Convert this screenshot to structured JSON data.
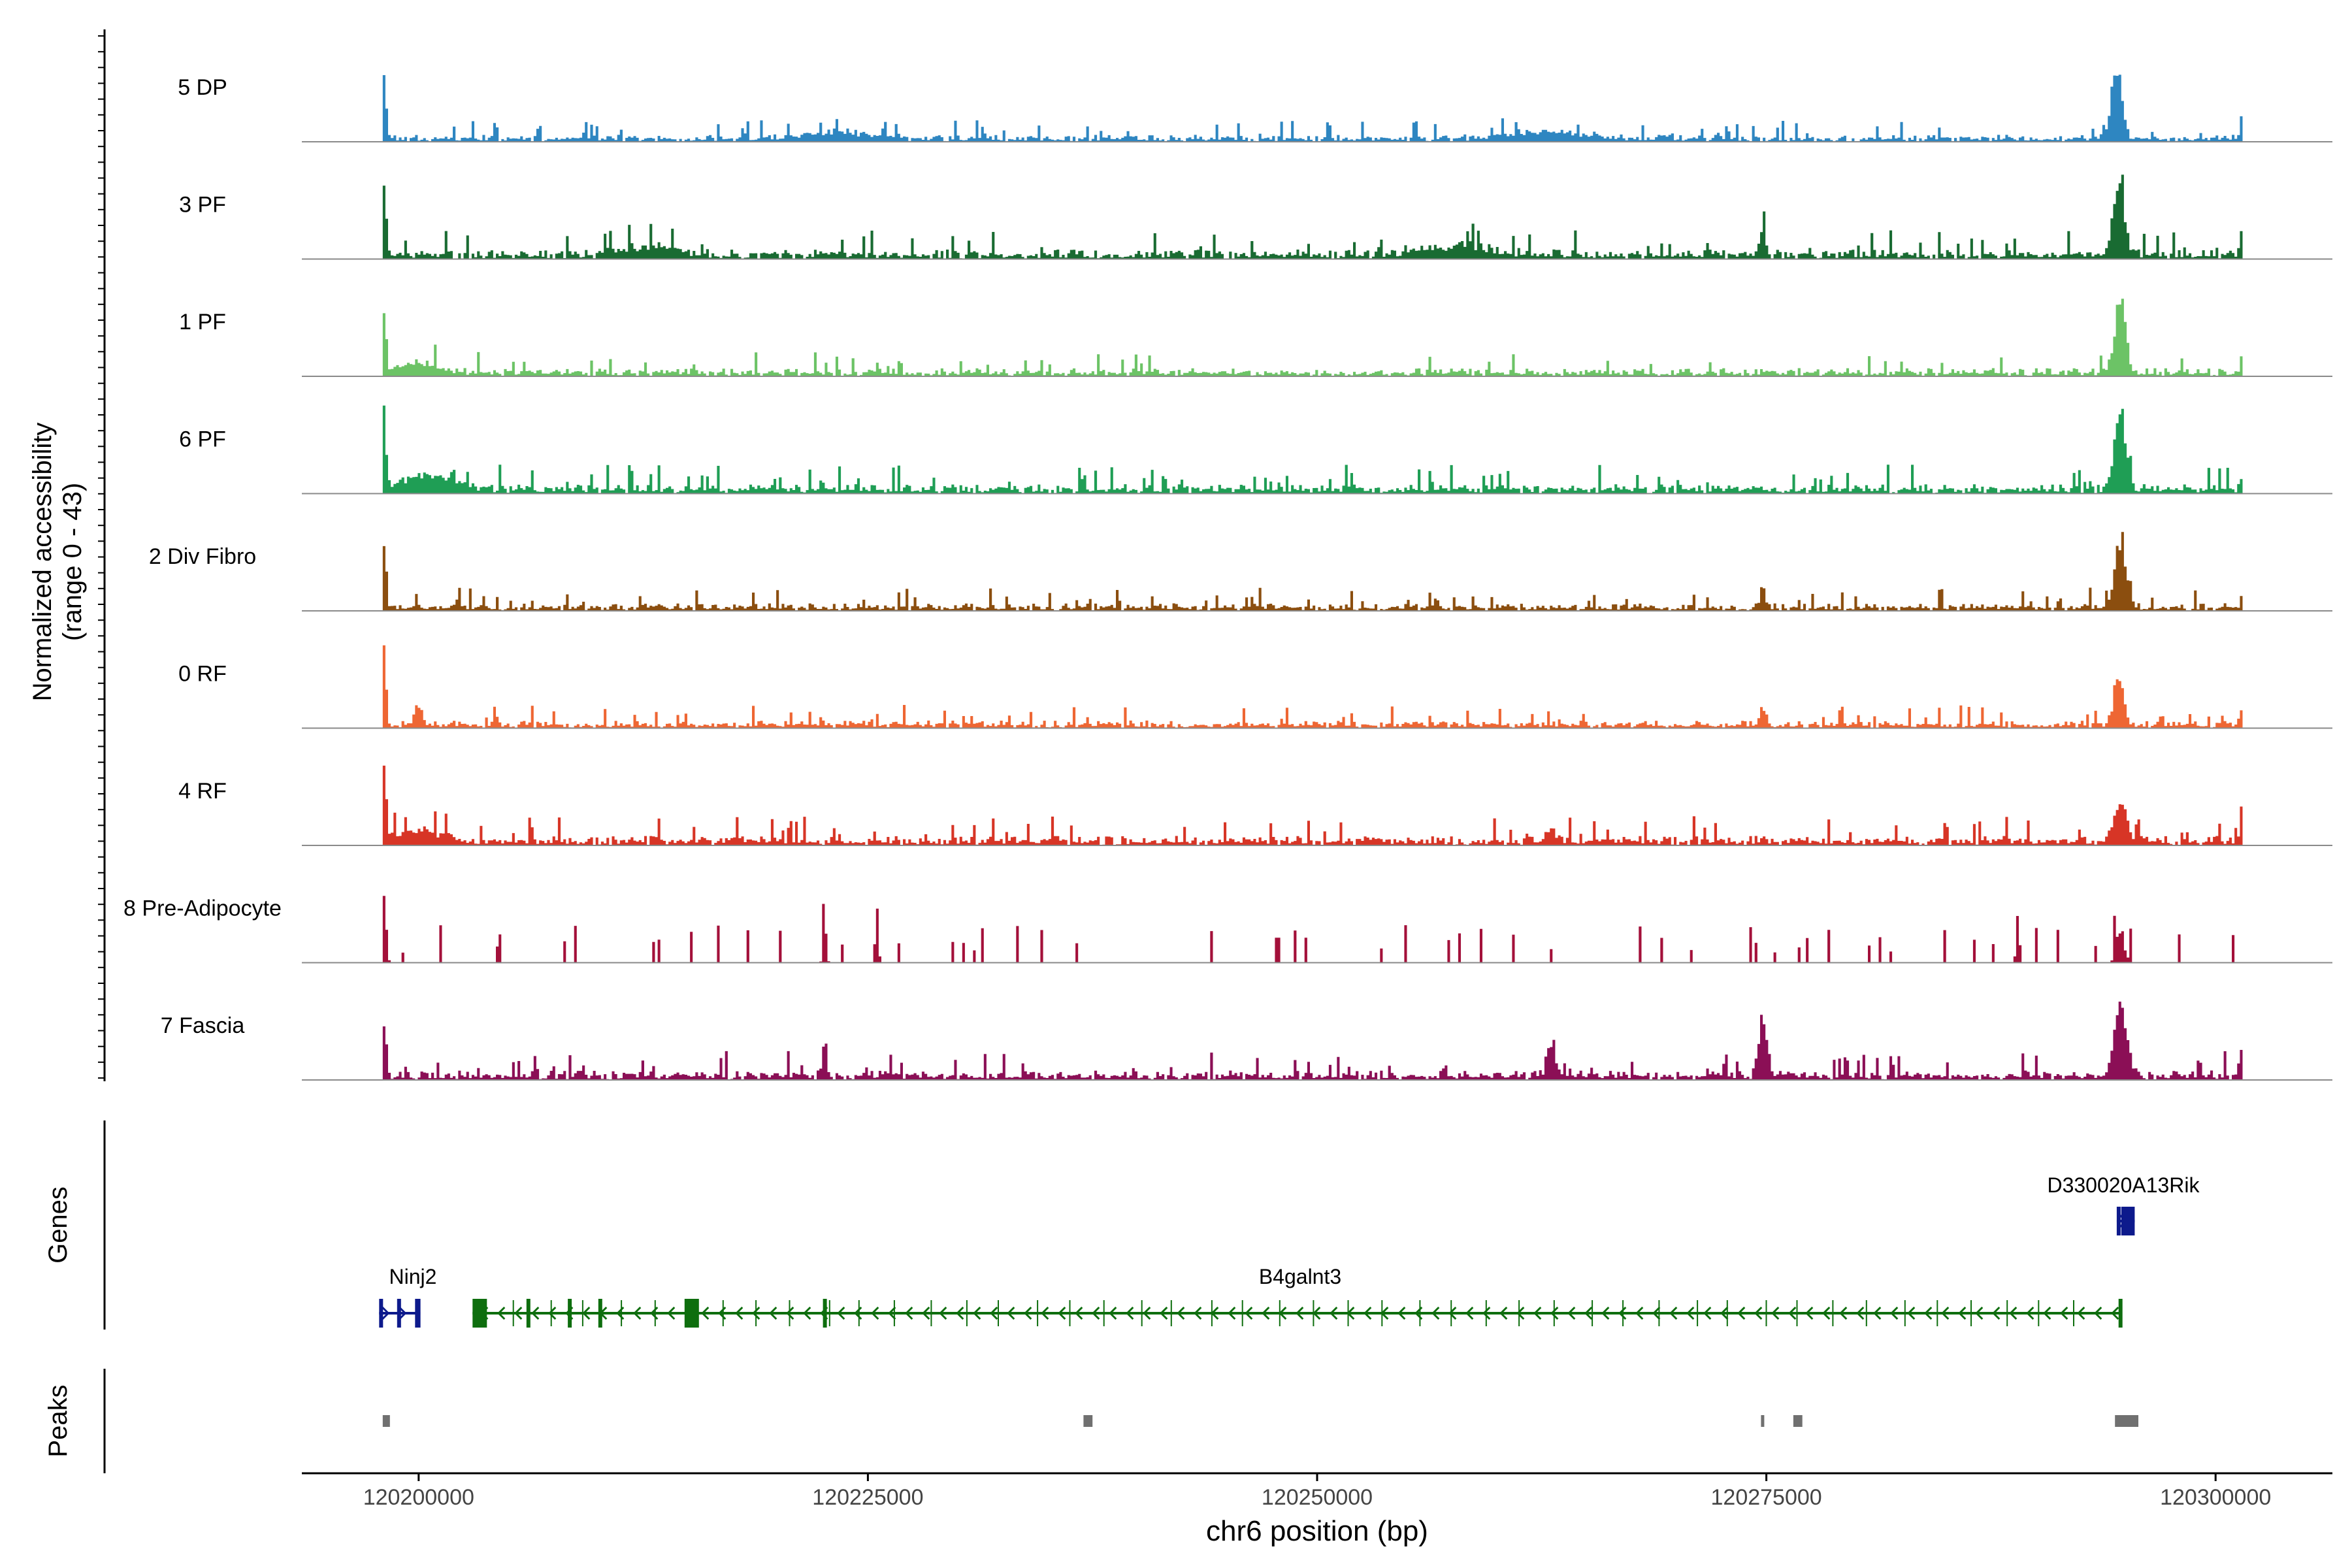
{
  "chart_data": {
    "type": "area",
    "title": "",
    "ylabel_line1": "Normalized accessibility",
    "ylabel_line2": "(range 0 - 43)",
    "ylim": [
      0,
      43
    ],
    "xlabel": "chr6 position (bp)",
    "xlim": [
      120193500,
      120306500
    ],
    "x_ticks": [
      120200000,
      120225000,
      120250000,
      120275000,
      120300000
    ],
    "x_tick_labels": [
      "120200000",
      "120225000",
      "120250000",
      "120275000",
      "120300000"
    ],
    "track_start": 120198000,
    "track_end": 120301500,
    "bin_size": 150,
    "series": [
      {
        "name": "5 DP",
        "color": "#2E86C1",
        "seed": 11,
        "base": 2.2,
        "peaks": [
          [
            120198100,
            34,
            150
          ],
          [
            120294500,
            36,
            420
          ],
          [
            120301400,
            12,
            90
          ],
          [
            120263000,
            3.5,
            3000
          ],
          [
            120223500,
            3,
            2500
          ]
        ]
      },
      {
        "name": "3 PF",
        "color": "#196B32",
        "seed": 23,
        "base": 3.0,
        "peaks": [
          [
            120198100,
            34,
            150
          ],
          [
            120274800,
            13,
            180
          ],
          [
            120294600,
            36,
            420
          ],
          [
            120301400,
            12,
            90
          ],
          [
            120213000,
            4.5,
            2000
          ],
          [
            120258000,
            4.5,
            2500
          ]
        ]
      },
      {
        "name": "1 PF",
        "color": "#6CC366",
        "seed": 37,
        "base": 2.6,
        "peaks": [
          [
            120198100,
            32,
            150
          ],
          [
            120294700,
            32,
            420
          ],
          [
            120301400,
            7,
            90
          ],
          [
            120200000,
            4,
            1500
          ]
        ]
      },
      {
        "name": "6 PF",
        "color": "#1F9E55",
        "seed": 41,
        "base": 3.0,
        "peaks": [
          [
            120198100,
            33,
            150
          ],
          [
            120294700,
            35,
            480
          ],
          [
            120301400,
            6,
            90
          ],
          [
            120200500,
            7,
            2000
          ]
        ]
      },
      {
        "name": "2 Div Fibro",
        "color": "#8B4E0F",
        "seed": 53,
        "base": 2.4,
        "peaks": [
          [
            120198100,
            37,
            150
          ],
          [
            120274800,
            11,
            180
          ],
          [
            120294700,
            33,
            420
          ],
          [
            120301400,
            6,
            90
          ]
        ]
      },
      {
        "name": "0 RF",
        "color": "#EE6633",
        "seed": 61,
        "base": 2.4,
        "peaks": [
          [
            120198100,
            37,
            150
          ],
          [
            120200000,
            8,
            300
          ],
          [
            120274800,
            9,
            200
          ],
          [
            120294600,
            22,
            400
          ],
          [
            120297000,
            9,
            100
          ],
          [
            120301400,
            10,
            90
          ]
        ]
      },
      {
        "name": "4 RF",
        "color": "#D73526",
        "seed": 71,
        "base": 3.0,
        "peaks": [
          [
            120198100,
            36,
            150
          ],
          [
            120263000,
            9,
            300
          ],
          [
            120294700,
            17,
            500
          ],
          [
            120301400,
            14,
            90
          ],
          [
            120200000,
            5,
            1500
          ]
        ]
      },
      {
        "name": "8 Pre-Adipocyte",
        "color": "#A3103A",
        "seed": 83,
        "base": 0,
        "sparse": true,
        "peaks": [
          [
            120198100,
            30,
            150
          ],
          [
            120289000,
            28,
            120
          ],
          [
            120294700,
            16,
            300
          ],
          [
            120222600,
            22,
            120
          ],
          [
            120225500,
            26,
            120
          ]
        ]
      },
      {
        "name": "7 Fascia",
        "color": "#8B0F56",
        "seed": 97,
        "base": 3.0,
        "peaks": [
          [
            120198100,
            29,
            150
          ],
          [
            120222600,
            17,
            160
          ],
          [
            120263000,
            16,
            300
          ],
          [
            120274800,
            27,
            320
          ],
          [
            120294700,
            33,
            480
          ],
          [
            120301400,
            14,
            90
          ]
        ]
      }
    ],
    "genes_label": "Genes",
    "genes": [
      {
        "name": "Ninj2",
        "color": "#0D1A8C",
        "strand": "+",
        "start": 120197800,
        "end": 120200100,
        "exons": [
          [
            120197800,
            120198000
          ],
          [
            120198800,
            120199000
          ],
          [
            120199800,
            120200100
          ]
        ]
      },
      {
        "name": "B4galnt3",
        "color": "#0E6E0E",
        "strand": "-",
        "start": 120203000,
        "end": 120294700,
        "exons": [
          [
            120203000,
            120203800
          ],
          [
            120206000,
            120206100
          ],
          [
            120208300,
            120208450
          ],
          [
            120210000,
            120210200
          ],
          [
            120214800,
            120215600
          ],
          [
            120222500,
            120222600
          ],
          [
            120294600,
            120294700
          ]
        ]
      },
      {
        "name": "D330020A13Rik",
        "color": "#0D1A8C",
        "strand": "+",
        "start": 120294500,
        "end": 120295500,
        "exons": [
          [
            120294500,
            120294700
          ],
          [
            120294750,
            120295500
          ]
        ]
      }
    ],
    "peaks_label": "Peaks",
    "peak_regions": [
      [
        120198000,
        120198400
      ],
      [
        120237000,
        120237500
      ],
      [
        120274700,
        120274800
      ],
      [
        120276500,
        120277000
      ],
      [
        120294400,
        120295700
      ]
    ],
    "peak_color": "#707070"
  }
}
